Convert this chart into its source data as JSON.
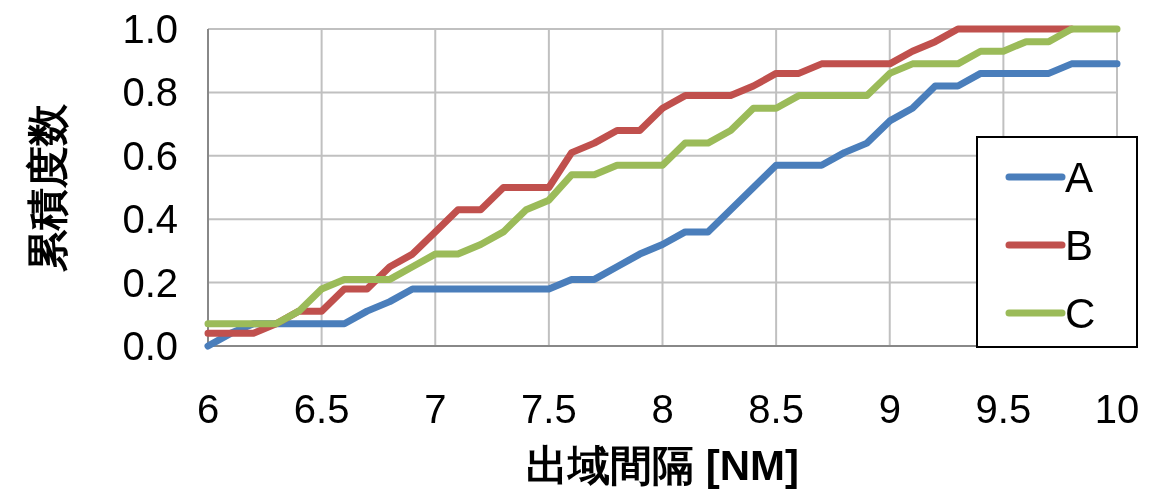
{
  "chart_data": {
    "type": "line",
    "xlabel": "出域間隔 [NM]",
    "ylabel": "累積度数",
    "x": [
      6,
      6.1,
      6.2,
      6.3,
      6.4,
      6.5,
      6.6,
      6.7,
      6.8,
      6.9,
      7,
      7.1,
      7.2,
      7.3,
      7.4,
      7.5,
      7.6,
      7.7,
      7.8,
      7.9,
      8,
      8.1,
      8.2,
      8.3,
      8.4,
      8.5,
      8.6,
      8.7,
      8.8,
      8.9,
      9,
      9.1,
      9.2,
      9.3,
      9.4,
      9.5,
      9.6,
      9.7,
      9.8,
      9.9,
      10
    ],
    "series": [
      {
        "name": "A",
        "color": "#4a7ebb",
        "values": [
          0,
          0.04,
          0.07,
          0.07,
          0.07,
          0.07,
          0.07,
          0.11,
          0.14,
          0.18,
          0.18,
          0.18,
          0.18,
          0.18,
          0.18,
          0.18,
          0.21,
          0.21,
          0.25,
          0.29,
          0.32,
          0.36,
          0.36,
          0.43,
          0.5,
          0.57,
          0.57,
          0.57,
          0.61,
          0.64,
          0.71,
          0.75,
          0.82,
          0.82,
          0.86,
          0.86,
          0.86,
          0.86,
          0.89,
          0.89,
          0.89
        ]
      },
      {
        "name": "B",
        "color": "#c0504d",
        "values": [
          0.04,
          0.04,
          0.04,
          0.07,
          0.11,
          0.11,
          0.18,
          0.18,
          0.25,
          0.29,
          0.36,
          0.43,
          0.43,
          0.5,
          0.5,
          0.5,
          0.61,
          0.64,
          0.68,
          0.68,
          0.75,
          0.79,
          0.79,
          0.79,
          0.82,
          0.86,
          0.86,
          0.89,
          0.89,
          0.89,
          0.89,
          0.93,
          0.96,
          1,
          1,
          1,
          1,
          1,
          1,
          null,
          null
        ]
      },
      {
        "name": "C",
        "color": "#9bbb59",
        "values": [
          0.07,
          0.07,
          0.07,
          0.07,
          0.11,
          0.18,
          0.21,
          0.21,
          0.21,
          0.25,
          0.29,
          0.29,
          0.32,
          0.36,
          0.43,
          0.46,
          0.54,
          0.54,
          0.57,
          0.57,
          0.57,
          0.64,
          0.64,
          0.68,
          0.75,
          0.75,
          0.79,
          0.79,
          0.79,
          0.79,
          0.86,
          0.89,
          0.89,
          0.89,
          0.93,
          0.93,
          0.96,
          0.96,
          1,
          1,
          1
        ]
      }
    ],
    "xlim": [
      6,
      10
    ],
    "xticks": [
      6,
      6.5,
      7,
      7.5,
      8,
      8.5,
      9,
      9.5,
      10
    ],
    "ylim": [
      0,
      1
    ],
    "yticks": [
      {
        "value": 0,
        "label": "0.0"
      },
      {
        "value": 0.2,
        "label": "0.2"
      },
      {
        "value": 0.4,
        "label": "0.4"
      },
      {
        "value": 0.6,
        "label": "0.6"
      },
      {
        "value": 0.8,
        "label": "0.8"
      },
      {
        "value": 1,
        "label": "1.0"
      }
    ],
    "grid": true,
    "legend": "right",
    "marker": "none",
    "line_style": "solid"
  }
}
